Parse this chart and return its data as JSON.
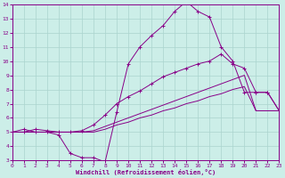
{
  "bg_color": "#cceee8",
  "grid_color": "#aad4ce",
  "line_color": "#880088",
  "xlim": [
    0,
    23
  ],
  "ylim": [
    3,
    14
  ],
  "xticks": [
    0,
    1,
    2,
    3,
    4,
    5,
    6,
    7,
    8,
    9,
    10,
    11,
    12,
    13,
    14,
    15,
    16,
    17,
    18,
    19,
    20,
    21,
    22,
    23
  ],
  "yticks": [
    3,
    4,
    5,
    6,
    7,
    8,
    9,
    10,
    11,
    12,
    13,
    14
  ],
  "xlabel": "Windchill (Refroidissement éolien,°C)",
  "curve_x": [
    0,
    1,
    2,
    3,
    4,
    5,
    6,
    7,
    8,
    9,
    10,
    11,
    12,
    13,
    14,
    15,
    16,
    17,
    18,
    19,
    20,
    21,
    22,
    23
  ],
  "curve_y": [
    5.0,
    5.2,
    5.0,
    5.0,
    4.8,
    3.5,
    3.2,
    3.2,
    2.9,
    6.4,
    9.8,
    11.0,
    11.8,
    12.5,
    13.5,
    14.2,
    13.5,
    13.1,
    11.0,
    10.0,
    7.8,
    7.8,
    7.8,
    6.5
  ],
  "line1_x": [
    0,
    1,
    2,
    3,
    4,
    5,
    6,
    7,
    8,
    9,
    10,
    11,
    12,
    13,
    14,
    15,
    16,
    17,
    18,
    19,
    20,
    21,
    22,
    23
  ],
  "line1_y": [
    5.0,
    5.0,
    5.2,
    5.1,
    5.0,
    5.0,
    5.1,
    5.5,
    6.2,
    7.0,
    7.5,
    7.9,
    8.4,
    8.9,
    9.2,
    9.5,
    9.8,
    10.0,
    10.5,
    9.8,
    9.5,
    7.8,
    7.8,
    6.5
  ],
  "line2_x": [
    0,
    1,
    2,
    3,
    4,
    5,
    6,
    7,
    8,
    9,
    10,
    11,
    12,
    13,
    14,
    15,
    16,
    17,
    18,
    19,
    20,
    21,
    22,
    23
  ],
  "line2_y": [
    5.0,
    5.0,
    5.0,
    5.0,
    5.0,
    5.0,
    5.0,
    5.1,
    5.4,
    5.7,
    6.0,
    6.3,
    6.6,
    6.9,
    7.2,
    7.5,
    7.8,
    8.1,
    8.4,
    8.7,
    9.0,
    6.5,
    6.5,
    6.5
  ],
  "line3_x": [
    0,
    1,
    2,
    3,
    4,
    5,
    6,
    7,
    8,
    9,
    10,
    11,
    12,
    13,
    14,
    15,
    16,
    17,
    18,
    19,
    20,
    21,
    22,
    23
  ],
  "line3_y": [
    5.0,
    5.0,
    5.0,
    5.0,
    5.0,
    5.0,
    5.0,
    5.0,
    5.2,
    5.5,
    5.7,
    6.0,
    6.2,
    6.5,
    6.7,
    7.0,
    7.2,
    7.5,
    7.7,
    8.0,
    8.2,
    6.5,
    6.5,
    6.5
  ]
}
